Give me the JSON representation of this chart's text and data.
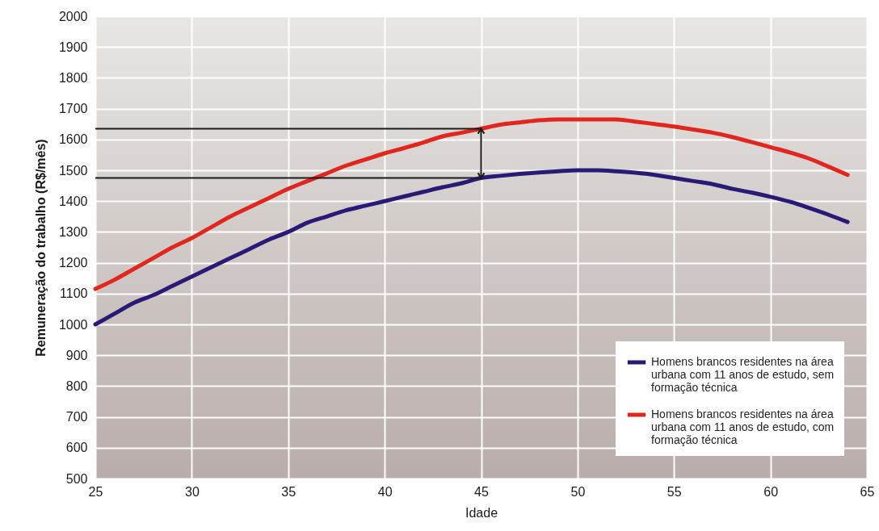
{
  "chart_data": {
    "type": "line",
    "xlabel": "Idade",
    "ylabel": "Remuneração do trabalho (R$/mês)",
    "x": [
      25,
      26,
      27,
      28,
      29,
      30,
      31,
      32,
      33,
      34,
      35,
      36,
      37,
      38,
      39,
      40,
      41,
      42,
      43,
      44,
      45,
      46,
      47,
      48,
      49,
      50,
      51,
      52,
      53,
      54,
      55,
      56,
      57,
      58,
      59,
      60,
      61,
      62,
      63,
      64
    ],
    "series": [
      {
        "name": "Homens brancos residentes na área urbana com 11 anos de estudo, sem formação técnica",
        "color": "#2a1a78",
        "values": [
          1000,
          1035,
          1070,
          1095,
          1125,
          1155,
          1185,
          1215,
          1245,
          1275,
          1300,
          1330,
          1350,
          1370,
          1385,
          1400,
          1415,
          1430,
          1445,
          1458,
          1475,
          1482,
          1488,
          1493,
          1497,
          1500,
          1500,
          1497,
          1492,
          1485,
          1475,
          1465,
          1455,
          1440,
          1428,
          1414,
          1398,
          1378,
          1356,
          1332
        ]
      },
      {
        "name": "Homens brancos residentes na área urbana com 11 anos de estudo, com formação técnica",
        "color": "#e0261f",
        "values": [
          1115,
          1145,
          1180,
          1215,
          1250,
          1280,
          1315,
          1350,
          1380,
          1410,
          1440,
          1465,
          1490,
          1515,
          1535,
          1555,
          1572,
          1590,
          1610,
          1622,
          1635,
          1648,
          1655,
          1662,
          1665,
          1665,
          1665,
          1665,
          1658,
          1650,
          1642,
          1632,
          1622,
          1608,
          1592,
          1575,
          1558,
          1538,
          1512,
          1485
        ]
      }
    ],
    "xlim": [
      25,
      65
    ],
    "xticks": [
      25,
      30,
      35,
      40,
      45,
      50,
      55,
      60,
      65
    ],
    "ylim": [
      500,
      2000
    ],
    "yticks": [
      500,
      600,
      700,
      800,
      900,
      1000,
      1100,
      1200,
      1300,
      1400,
      1500,
      1600,
      1700,
      1800,
      1900,
      2000
    ],
    "ref_lines": [
      {
        "axis": "y",
        "value": 1635,
        "color": "#1a1a1a"
      },
      {
        "axis": "y",
        "value": 1475,
        "color": "#1a1a1a"
      }
    ],
    "grid": true,
    "legend": "bottom right",
    "marker": "none",
    "line_style": "solid"
  }
}
